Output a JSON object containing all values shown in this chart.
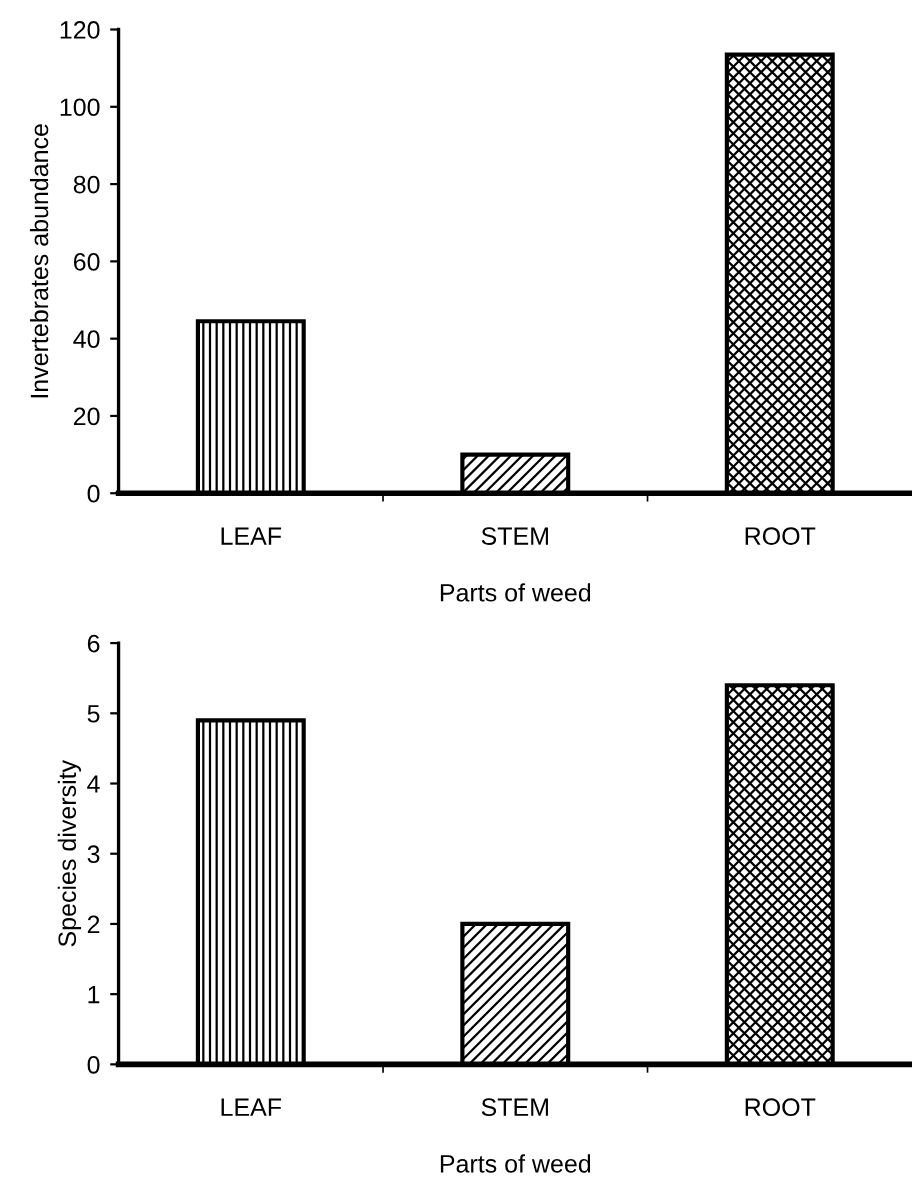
{
  "chart_data": [
    {
      "type": "bar",
      "xlabel": "Parts of weed",
      "ylabel": "Invertebrates abundance",
      "categories": [
        "LEAF",
        "STEM",
        "ROOT"
      ],
      "values": [
        44.5,
        10,
        113.5
      ],
      "colors": [
        "#000000",
        "#000000",
        "#000000"
      ],
      "ylim": [
        0,
        120
      ],
      "yticks": [
        0,
        20,
        40,
        60,
        80,
        100,
        120
      ],
      "grid": false
    },
    {
      "type": "bar",
      "xlabel": "Parts of weed",
      "ylabel": "Species diversity",
      "categories": [
        "LEAF",
        "STEM",
        "ROOT"
      ],
      "values": [
        4.9,
        2.0,
        5.4
      ],
      "colors": [
        "#000000",
        "#000000",
        "#000000"
      ],
      "ylim": [
        0,
        6
      ],
      "yticks": [
        0,
        1,
        2,
        3,
        4,
        5,
        6
      ],
      "grid": false
    }
  ]
}
